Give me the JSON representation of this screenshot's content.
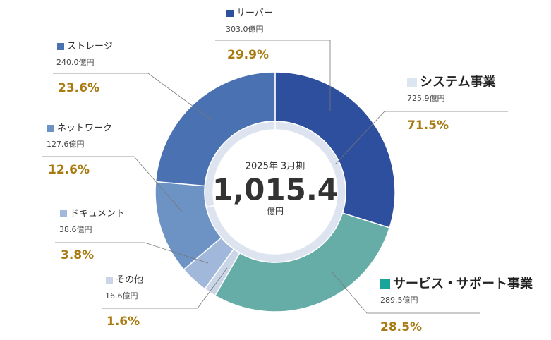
{
  "chart_data": {
    "type": "donut",
    "center": {
      "title": "2025年 3月期",
      "total": {
        "value": 1015.4,
        "label": "1,015.4"
      },
      "unit": "億円"
    },
    "ring_color": "#dde4ef",
    "groups": [
      {
        "name": "システム事業",
        "color": "#dce6f0",
        "value": 725.9,
        "value_label": "725.9億円",
        "percent": 71.5,
        "percent_label": "71.5%",
        "items": [
          {
            "name": "サーバー",
            "color": "#2e4f9e",
            "value": 303.0,
            "value_label": "303.0億円",
            "percent": 29.9,
            "percent_label": "29.9%"
          },
          {
            "name": "ストレージ",
            "color": "#4a72b3",
            "value": 240.0,
            "value_label": "240.0億円",
            "percent": 23.6,
            "percent_label": "23.6%"
          },
          {
            "name": "ネットワーク",
            "color": "#6d92c4",
            "value": 127.6,
            "value_label": "127.6億円",
            "percent": 12.6,
            "percent_label": "12.6%"
          },
          {
            "name": "ドキュメント",
            "color": "#a2b8da",
            "value": 38.6,
            "value_label": "38.6億円",
            "percent": 3.8,
            "percent_label": "3.8%"
          },
          {
            "name": "その他",
            "color": "#cad6e8",
            "value": 16.6,
            "value_label": "16.6億円",
            "percent": 1.6,
            "percent_label": "1.6%"
          }
        ]
      },
      {
        "name": "サービス・サポート事業",
        "color": "#1aa59a",
        "wedge_color": "#66ada8",
        "value": 289.5,
        "value_label": "289.5億円",
        "percent": 28.5,
        "percent_label": "28.5%"
      }
    ]
  }
}
